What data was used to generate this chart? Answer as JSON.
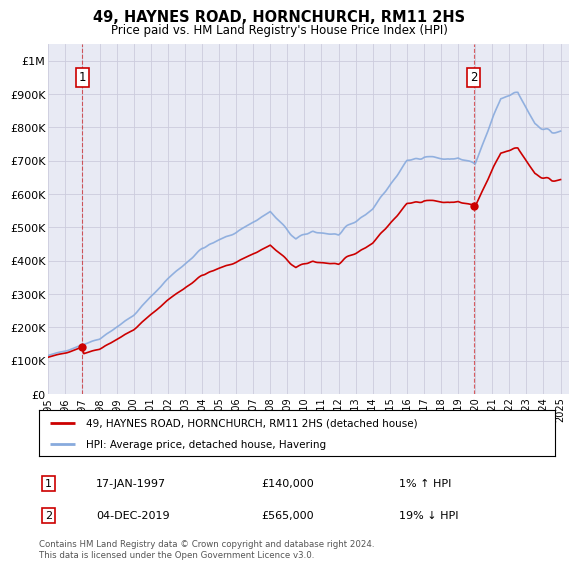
{
  "title": "49, HAYNES ROAD, HORNCHURCH, RM11 2HS",
  "subtitle": "Price paid vs. HM Land Registry's House Price Index (HPI)",
  "hpi_label": "HPI: Average price, detached house, Havering",
  "property_label": "49, HAYNES ROAD, HORNCHURCH, RM11 2HS (detached house)",
  "annotation1": {
    "label": "1",
    "date": "17-JAN-1997",
    "price": 140000,
    "hpi_note": "1% ↑ HPI"
  },
  "annotation2": {
    "label": "2",
    "date": "04-DEC-2019",
    "price": 565000,
    "hpi_note": "19% ↓ HPI"
  },
  "footer": "Contains HM Land Registry data © Crown copyright and database right 2024.\nThis data is licensed under the Open Government Licence v3.0.",
  "ylim": [
    0,
    1050000
  ],
  "yticks": [
    0,
    100000,
    200000,
    300000,
    400000,
    500000,
    600000,
    700000,
    800000,
    900000,
    1000000
  ],
  "ytick_labels": [
    "£0",
    "£100K",
    "£200K",
    "£300K",
    "£400K",
    "£500K",
    "£600K",
    "£700K",
    "£800K",
    "£900K",
    "£1M"
  ],
  "line_color_property": "#cc0000",
  "line_color_hpi": "#88aadd",
  "annotation_box_color": "#cc0000",
  "grid_color": "#ccccdd",
  "bg_color": "#e8eaf4",
  "sale1_year": 1997.04,
  "sale2_year": 2019.92,
  "anno1_price": 140000,
  "anno2_price": 565000
}
